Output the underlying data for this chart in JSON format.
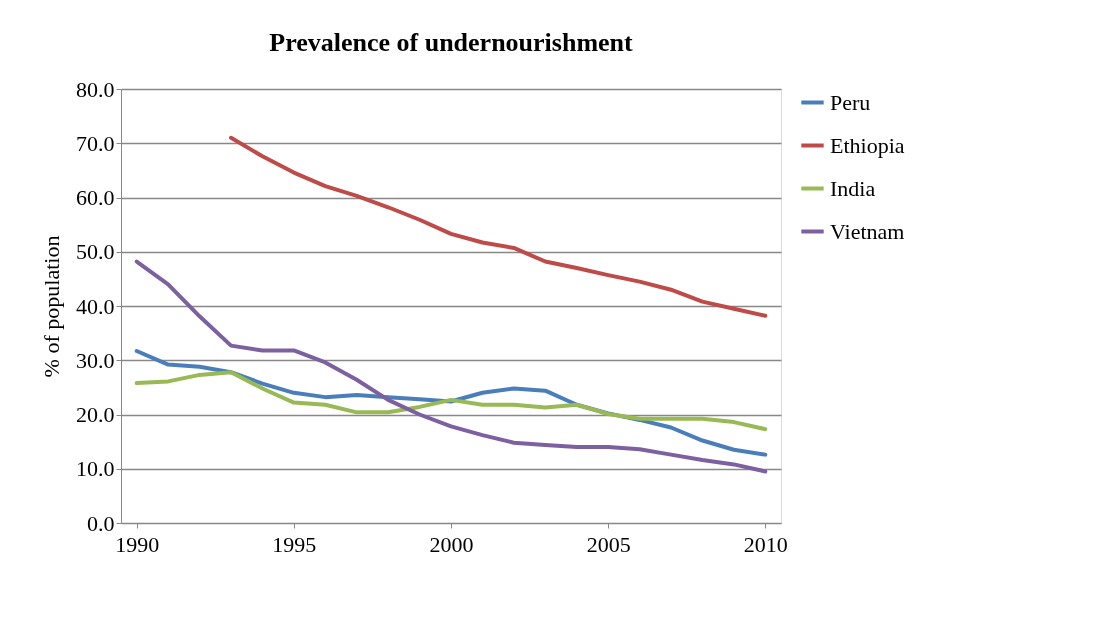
{
  "chart_data": {
    "type": "line",
    "title": "Prevalence of undernourishment",
    "ylabel": "% of population",
    "x": [
      1990,
      1991,
      1992,
      1993,
      1994,
      1995,
      1996,
      1997,
      1998,
      1999,
      2000,
      2001,
      2002,
      2003,
      2004,
      2005,
      2006,
      2007,
      2008,
      2009,
      2010
    ],
    "series": [
      {
        "name": "Peru",
        "color": "#4a7ebb",
        "values": [
          31.7,
          29.2,
          28.8,
          27.8,
          25.7,
          24.0,
          23.2,
          23.6,
          23.2,
          22.8,
          22.4,
          24.0,
          24.8,
          24.4,
          21.8,
          20.2,
          19.0,
          17.6,
          15.2,
          13.5,
          12.6
        ]
      },
      {
        "name": "Ethiopia",
        "color": "#be4b48",
        "values": [
          null,
          null,
          null,
          71.0,
          67.6,
          64.6,
          62.1,
          60.3,
          58.2,
          55.9,
          53.3,
          51.7,
          50.7,
          48.2,
          47.0,
          45.7,
          44.5,
          43.0,
          40.8,
          39.5,
          38.2
        ]
      },
      {
        "name": "India",
        "color": "#98b954",
        "values": [
          25.8,
          26.1,
          27.3,
          27.8,
          24.8,
          22.2,
          21.8,
          20.4,
          20.4,
          21.4,
          22.7,
          21.8,
          21.8,
          21.3,
          21.8,
          20.1,
          19.2,
          19.2,
          19.2,
          18.6,
          17.3
        ]
      },
      {
        "name": "Vietnam",
        "color": "#7d60a0",
        "values": [
          48.2,
          44.0,
          38.1,
          32.7,
          31.8,
          31.8,
          29.6,
          26.4,
          22.7,
          20.0,
          17.8,
          16.2,
          14.8,
          14.4,
          14.0,
          14.0,
          13.6,
          12.6,
          11.6,
          10.8,
          9.5
        ]
      }
    ],
    "xlim": [
      1989.5,
      2010.5
    ],
    "xticks": [
      1990,
      1995,
      2000,
      2005,
      2010
    ],
    "ylim": [
      0,
      80
    ],
    "yticks": [
      {
        "value": 0,
        "label": "0.0"
      },
      {
        "value": 10,
        "label": "10.0"
      },
      {
        "value": 20,
        "label": "20.0"
      },
      {
        "value": 30,
        "label": "30.0"
      },
      {
        "value": 40,
        "label": "40.0"
      },
      {
        "value": 50,
        "label": "50.0"
      },
      {
        "value": 60,
        "label": "60.0"
      },
      {
        "value": 70,
        "label": "70.0"
      },
      {
        "value": 80,
        "label": "80.0"
      }
    ],
    "grid": "y",
    "legend": "right",
    "marker": "none",
    "line_style": "solid"
  }
}
